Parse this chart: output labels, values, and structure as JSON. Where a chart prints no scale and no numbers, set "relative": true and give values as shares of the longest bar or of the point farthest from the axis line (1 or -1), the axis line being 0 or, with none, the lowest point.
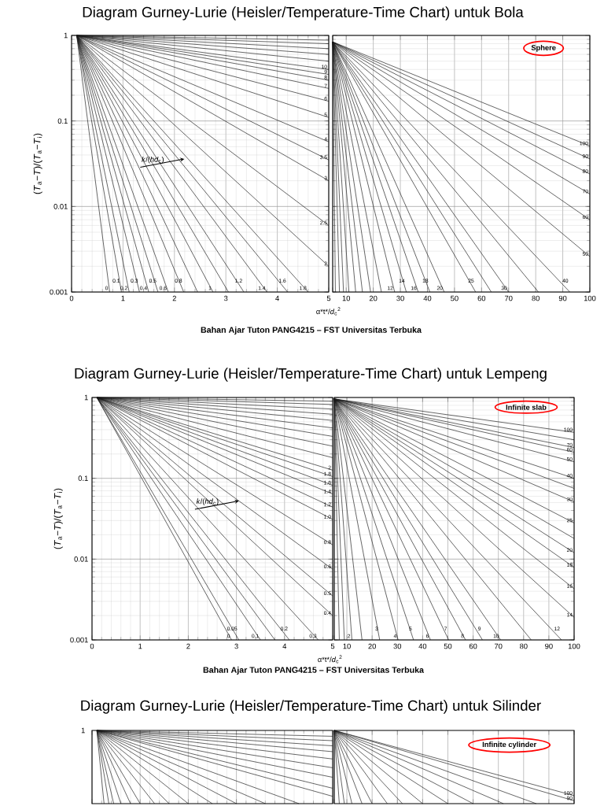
{
  "chart_data": [
    {
      "type": "line",
      "title": "Diagram Gurney-Lurie (Heisler/Temperature-Time Chart) untuk Bola",
      "ylabel": "(*T*$_{a}$−*T*)/(*T*$_{a}$−*T*$_{i}$)",
      "color": "#1a1a1a",
      "log": "y",
      "grid": true,
      "xlim": [
        0,
        5
      ],
      "ylim": [
        0.001,
        1
      ],
      "xticks": [
        0,
        1,
        2,
        3,
        4,
        5
      ],
      "yticks": [
        0.001,
        0.01,
        0.1,
        1
      ],
      "annotations": [
        {
          "text": "*k*/(*hd*$_{c}$)",
          "x": 1.58,
          "y": 0.035
        }
      ],
      "series": [
        {
          "name": "0",
          "x": [
            0.1,
            0.74
          ],
          "values": [
            1,
            0.001
          ]
        },
        {
          "name": "0.1",
          "x": [
            0.1,
            0.97
          ],
          "values": [
            1,
            0.001
          ]
        },
        {
          "name": "0.2",
          "x": [
            0.1,
            1.12
          ],
          "values": [
            1,
            0.001
          ]
        },
        {
          "name": "0.3",
          "x": [
            0.1,
            1.32
          ],
          "values": [
            1,
            0.001
          ]
        },
        {
          "name": "0.4",
          "x": [
            0.1,
            1.5
          ],
          "values": [
            1,
            0.001
          ]
        },
        {
          "name": "0.5",
          "x": [
            0.1,
            1.68
          ],
          "values": [
            1,
            0.001
          ]
        },
        {
          "name": "0.6",
          "x": [
            0.1,
            1.88
          ],
          "values": [
            1,
            0.001
          ]
        },
        {
          "name": "0.8",
          "x": [
            0.1,
            2.18
          ],
          "values": [
            1,
            0.001
          ]
        },
        {
          "x": [
            0.1,
            2.45
          ],
          "values": [
            1,
            0.001
          ]
        },
        {
          "name": "1",
          "x": [
            0.1,
            2.75
          ],
          "values": [
            1,
            0.001
          ]
        },
        {
          "x": [
            0.1,
            3.05
          ],
          "values": [
            1,
            0.001
          ]
        },
        {
          "name": "1.2",
          "x": [
            0.1,
            3.35
          ],
          "values": [
            1,
            0.001
          ]
        },
        {
          "name": "1.4",
          "x": [
            0.1,
            3.8
          ],
          "values": [
            1,
            0.001
          ]
        },
        {
          "name": "1.6",
          "x": [
            0.1,
            4.2
          ],
          "values": [
            1,
            0.001
          ]
        },
        {
          "name": "1.8",
          "x": [
            0.1,
            4.6
          ],
          "values": [
            1,
            0.001
          ]
        },
        {
          "name": "2",
          "x": [
            0.1,
            5
          ],
          "values": [
            1,
            0.002
          ]
        },
        {
          "name": "2.5",
          "x": [
            0.1,
            5
          ],
          "values": [
            1,
            0.006
          ]
        },
        {
          "name": "3",
          "x": [
            0.1,
            5
          ],
          "values": [
            1,
            0.02
          ]
        },
        {
          "name": "3.5",
          "x": [
            0.1,
            5
          ],
          "values": [
            1,
            0.035
          ]
        },
        {
          "name": "4",
          "x": [
            0.1,
            5
          ],
          "values": [
            1,
            0.057
          ]
        },
        {
          "name": "5",
          "x": [
            0.1,
            5
          ],
          "values": [
            1,
            0.11
          ]
        },
        {
          "name": "6",
          "x": [
            0.1,
            5
          ],
          "values": [
            1,
            0.17
          ]
        },
        {
          "name": "7",
          "x": [
            0.1,
            5
          ],
          "values": [
            1,
            0.24
          ]
        },
        {
          "name": "8",
          "x": [
            0.1,
            5
          ],
          "values": [
            1,
            0.3
          ]
        },
        {
          "name": "9",
          "x": [
            0.1,
            5
          ],
          "values": [
            1,
            0.35
          ]
        },
        {
          "name": "10",
          "x": [
            0.1,
            5
          ],
          "values": [
            1,
            0.4
          ]
        },
        {
          "x": [
            0.1,
            5
          ],
          "values": [
            1,
            0.5
          ]
        },
        {
          "x": [
            0.1,
            5
          ],
          "values": [
            1,
            0.6
          ]
        },
        {
          "x": [
            0.1,
            5
          ],
          "values": [
            1,
            0.7
          ]
        },
        {
          "x": [
            0.1,
            5
          ],
          "values": [
            1,
            0.8
          ]
        },
        {
          "x": [
            0.1,
            5
          ],
          "values": [
            1,
            0.88
          ]
        }
      ]
    },
    {
      "type": "line",
      "xlabel": "α*t*/*d*$_{c}$$^{2}$",
      "color": "#1a1a1a",
      "log": "y",
      "grid": true,
      "tick_labels": "x",
      "xlim": [
        5,
        100
      ],
      "ylim": [
        0.001,
        1
      ],
      "xticks": [
        {
          "value": 5,
          "label": null
        },
        10,
        20,
        30,
        40,
        50,
        60,
        70,
        80,
        90,
        100
      ],
      "yticks": [
        0.001,
        0.01,
        0.1,
        1
      ],
      "annotations": [
        "Sphere",
        "Bahan Ajar Tuton PANG4215 – FST Universitas Terbuka"
      ],
      "series": [
        {
          "x": [
            5,
            6
          ],
          "values": [
            0.84,
            0.001
          ]
        },
        {
          "x": [
            5,
            7.5
          ],
          "values": [
            0.84,
            0.001
          ]
        },
        {
          "x": [
            5,
            9
          ],
          "values": [
            0.84,
            0.001
          ]
        },
        {
          "x": [
            5,
            11
          ],
          "values": [
            0.84,
            0.001
          ]
        },
        {
          "x": [
            5,
            13.5
          ],
          "values": [
            0.84,
            0.001
          ]
        },
        {
          "x": [
            5,
            16
          ],
          "values": [
            0.84,
            0.001
          ]
        },
        {
          "x": [
            5,
            19
          ],
          "values": [
            0.84,
            0.001
          ]
        },
        {
          "x": [
            5,
            23
          ],
          "values": [
            0.84,
            0.001
          ]
        },
        {
          "name": "12",
          "x": [
            5,
            27.9
          ],
          "values": [
            0.84,
            0.001
          ]
        },
        {
          "name": "14",
          "x": [
            5,
            32.2
          ],
          "values": [
            0.84,
            0.001
          ]
        },
        {
          "name": "16",
          "x": [
            5,
            36.6
          ],
          "values": [
            0.84,
            0.001
          ]
        },
        {
          "name": "18",
          "x": [
            5,
            40.9
          ],
          "values": [
            0.84,
            0.001
          ]
        },
        {
          "name": "20",
          "x": [
            5,
            46.2
          ],
          "values": [
            0.84,
            0.001
          ]
        },
        {
          "name": "25",
          "x": [
            5,
            57.8
          ],
          "values": [
            0.84,
            0.001
          ]
        },
        {
          "x": [
            5,
            63.6
          ],
          "values": [
            0.84,
            0.001
          ]
        },
        {
          "name": "30",
          "x": [
            5,
            70
          ],
          "values": [
            0.84,
            0.001
          ]
        },
        {
          "x": [
            5,
            81
          ],
          "values": [
            0.84,
            0.001
          ]
        },
        {
          "name": "40",
          "x": [
            5,
            92.6
          ],
          "values": [
            0.84,
            0.001
          ]
        },
        {
          "name": "50",
          "x": [
            5,
            100
          ],
          "values": [
            0.84,
            0.0026
          ]
        },
        {
          "name": "60",
          "x": [
            5,
            100
          ],
          "values": [
            0.84,
            0.007
          ]
        },
        {
          "name": "70",
          "x": [
            5,
            100
          ],
          "values": [
            0.84,
            0.014
          ]
        },
        {
          "name": "80",
          "x": [
            5,
            100
          ],
          "values": [
            0.84,
            0.024
          ]
        },
        {
          "name": "90",
          "x": [
            5,
            100
          ],
          "values": [
            0.84,
            0.036
          ]
        },
        {
          "name": "100",
          "x": [
            5,
            100
          ],
          "values": [
            0.84,
            0.051
          ]
        }
      ]
    },
    {
      "type": "line",
      "title": "Diagram Gurney-Lurie (Heisler/Temperature-Time Chart) untuk Lempeng",
      "ylabel": "(*T*$_{a}$−*T*)/(*T*$_{a}$−*T*$_{i}$)",
      "color": "#1a1a1a",
      "log": "y",
      "grid": true,
      "xlim": [
        0,
        5
      ],
      "ylim": [
        0.001,
        1
      ],
      "xticks": [
        0,
        1,
        2,
        3,
        4,
        5
      ],
      "yticks": [
        0.001,
        0.01,
        0.1,
        1
      ],
      "annotations": [
        {
          "text": "*k*/(*hd*$_{c}$)",
          "x": 2.4,
          "y": 0.051
        }
      ],
      "series": [
        {
          "name": "0",
          "x": [
            0.1,
            2.9
          ],
          "values": [
            1,
            0.001
          ]
        },
        {
          "name": "0.05",
          "x": [
            0.1,
            3.05
          ],
          "values": [
            1,
            0.001
          ]
        },
        {
          "name": "0.1",
          "x": [
            0.1,
            3.5
          ],
          "values": [
            1,
            0.001
          ]
        },
        {
          "x": [
            0.1,
            3.8
          ],
          "values": [
            1,
            0.001
          ]
        },
        {
          "name": "0.2",
          "x": [
            0.1,
            4.1
          ],
          "values": [
            1,
            0.001
          ]
        },
        {
          "name": "0.3",
          "x": [
            0.1,
            4.7
          ],
          "values": [
            1,
            0.001
          ]
        },
        {
          "name": "0.4",
          "x": [
            0.1,
            5
          ],
          "values": [
            1,
            0.002
          ]
        },
        {
          "name": "0.5",
          "x": [
            0.1,
            5
          ],
          "values": [
            1,
            0.0035
          ]
        },
        {
          "name": "0.6",
          "x": [
            0.1,
            5
          ],
          "values": [
            1,
            0.0075
          ]
        },
        {
          "name": "0.8",
          "x": [
            0.1,
            5
          ],
          "values": [
            1,
            0.015
          ]
        },
        {
          "name": "1.0",
          "x": [
            0.1,
            5
          ],
          "values": [
            1,
            0.031
          ]
        },
        {
          "name": "1.2",
          "x": [
            0.1,
            5
          ],
          "values": [
            1,
            0.044
          ]
        },
        {
          "name": "1.4",
          "x": [
            0.1,
            5
          ],
          "values": [
            1,
            0.064
          ]
        },
        {
          "name": "1.6",
          "x": [
            0.1,
            5
          ],
          "values": [
            1,
            0.082
          ]
        },
        {
          "name": "1.8",
          "x": [
            0.1,
            5
          ],
          "values": [
            1,
            0.105
          ]
        },
        {
          "name": "2",
          "x": [
            0.1,
            5
          ],
          "values": [
            1,
            0.126
          ]
        },
        {
          "x": [
            0.1,
            5
          ],
          "values": [
            1,
            0.18
          ]
        },
        {
          "x": [
            0.1,
            5
          ],
          "values": [
            1,
            0.25
          ]
        },
        {
          "x": [
            0.1,
            5
          ],
          "values": [
            1,
            0.33
          ]
        },
        {
          "x": [
            0.1,
            5
          ],
          "values": [
            1,
            0.42
          ]
        },
        {
          "x": [
            0.1,
            5
          ],
          "values": [
            1,
            0.52
          ]
        },
        {
          "x": [
            0.1,
            5
          ],
          "values": [
            1,
            0.62
          ]
        },
        {
          "x": [
            0.1,
            5
          ],
          "values": [
            1,
            0.72
          ]
        },
        {
          "x": [
            0.1,
            5
          ],
          "values": [
            1,
            0.82
          ]
        },
        {
          "x": [
            0.1,
            5
          ],
          "values": [
            1,
            0.9
          ]
        }
      ]
    },
    {
      "type": "line",
      "xlabel": "α*t*/*d*$_{c}$$^{2}$",
      "color": "#1a1a1a",
      "log": "y",
      "grid": true,
      "tick_labels": "x",
      "xlim": [
        5,
        100
      ],
      "ylim": [
        0.001,
        1
      ],
      "xticks": [
        {
          "value": 5,
          "label": null
        },
        10,
        20,
        30,
        40,
        50,
        60,
        70,
        80,
        90,
        100
      ],
      "yticks": [
        0.001,
        0.01,
        0.1,
        1
      ],
      "annotations": [
        "Infinite slab",
        "Bahan Ajar Tuton PANG4215 – FST Universitas Terbuka"
      ],
      "series": [
        {
          "x": [
            5,
            7
          ],
          "values": [
            0.96,
            0.001
          ]
        },
        {
          "x": [
            5,
            9
          ],
          "values": [
            0.96,
            0.001
          ]
        },
        {
          "name": "2",
          "x": [
            5,
            12
          ],
          "values": [
            0.96,
            0.001
          ]
        },
        {
          "x": [
            5,
            16
          ],
          "values": [
            0.96,
            0.001
          ]
        },
        {
          "name": "3",
          "x": [
            5,
            23
          ],
          "values": [
            0.96,
            0.001
          ]
        },
        {
          "name": "4",
          "x": [
            5,
            30.3
          ],
          "values": [
            0.96,
            0.001
          ]
        },
        {
          "name": "5",
          "x": [
            5,
            36.4
          ],
          "values": [
            0.96,
            0.001
          ]
        },
        {
          "name": "6",
          "x": [
            5,
            43.1
          ],
          "values": [
            0.96,
            0.001
          ]
        },
        {
          "name": "7",
          "x": [
            5,
            50.3
          ],
          "values": [
            0.96,
            0.001
          ]
        },
        {
          "name": "8",
          "x": [
            5,
            57
          ],
          "values": [
            0.96,
            0.001
          ]
        },
        {
          "name": "9",
          "x": [
            5,
            63.7
          ],
          "values": [
            0.96,
            0.001
          ]
        },
        {
          "name": "10",
          "x": [
            5,
            70.9
          ],
          "values": [
            0.96,
            0.001
          ]
        },
        {
          "x": [
            5,
            83
          ],
          "values": [
            0.96,
            0.001
          ]
        },
        {
          "name": "12",
          "x": [
            5,
            95
          ],
          "values": [
            0.96,
            0.001
          ]
        },
        {
          "name": "14",
          "x": [
            5,
            100
          ],
          "values": [
            0.96,
            0.0019
          ]
        },
        {
          "name": "16",
          "x": [
            5,
            100
          ],
          "values": [
            0.96,
            0.0043
          ]
        },
        {
          "name": "18",
          "x": [
            5,
            100
          ],
          "values": [
            0.96,
            0.0079
          ]
        },
        {
          "name": "20",
          "x": [
            5,
            100
          ],
          "values": [
            0.96,
            0.012
          ]
        },
        {
          "x": [
            5,
            100
          ],
          "values": [
            0.96,
            0.018
          ]
        },
        {
          "name": "25",
          "x": [
            5,
            100
          ],
          "values": [
            0.96,
            0.028
          ]
        },
        {
          "name": "30",
          "x": [
            5,
            100
          ],
          "values": [
            0.96,
            0.051
          ]
        },
        {
          "x": [
            5,
            100
          ],
          "values": [
            0.96,
            0.075
          ]
        },
        {
          "name": "40",
          "x": [
            5,
            100
          ],
          "values": [
            0.96,
            0.1
          ]
        },
        {
          "name": "50",
          "x": [
            5,
            100
          ],
          "values": [
            0.96,
            0.16
          ]
        },
        {
          "name": "60",
          "x": [
            5,
            100
          ],
          "values": [
            0.96,
            0.21
          ]
        },
        {
          "name": "70",
          "x": [
            5,
            100
          ],
          "values": [
            0.96,
            0.24
          ]
        },
        {
          "x": [
            5,
            100
          ],
          "values": [
            0.96,
            0.3
          ]
        },
        {
          "name": "100",
          "x": [
            5,
            100
          ],
          "values": [
            0.96,
            0.37
          ]
        }
      ]
    },
    {
      "type": "line",
      "title": "Diagram Gurney-Lurie (Heisler/Temperature-Time Chart) untuk Silinder",
      "color": "#1a1a1a",
      "relative": true,
      "grid": "x",
      "tick_labels": false,
      "xlim": [
        0,
        5
      ],
      "xticks": [
        0,
        1,
        2,
        3,
        4,
        5
      ],
      "annotations": [
        "1"
      ],
      "series": [
        {
          "x": [
            0.1,
            0.25
          ],
          "values": [
            1,
            0
          ]
        },
        {
          "x": [
            0.1,
            0.35
          ],
          "values": [
            1,
            0
          ]
        },
        {
          "x": [
            0.1,
            0.45
          ],
          "values": [
            1,
            0
          ]
        },
        {
          "x": [
            0.1,
            0.6
          ],
          "values": [
            1,
            0
          ]
        },
        {
          "x": [
            0.1,
            0.8
          ],
          "values": [
            1,
            0
          ]
        },
        {
          "x": [
            0.1,
            1.0
          ],
          "values": [
            1,
            0
          ]
        },
        {
          "x": [
            0.1,
            1.3
          ],
          "values": [
            1,
            0
          ]
        },
        {
          "x": [
            0.1,
            1.6
          ],
          "values": [
            1,
            0
          ]
        },
        {
          "x": [
            0.1,
            2.0
          ],
          "values": [
            1,
            0
          ]
        },
        {
          "x": [
            0.1,
            2.5
          ],
          "values": [
            1,
            0
          ]
        },
        {
          "x": [
            0.1,
            3.0
          ],
          "values": [
            1,
            0
          ]
        },
        {
          "x": [
            0.1,
            3.6
          ],
          "values": [
            1,
            0
          ]
        },
        {
          "x": [
            0.1,
            4.3
          ],
          "values": [
            1,
            0
          ]
        },
        {
          "x": [
            0.1,
            5
          ],
          "values": [
            1,
            0.1
          ]
        },
        {
          "x": [
            0.1,
            5
          ],
          "values": [
            1,
            0.21
          ]
        },
        {
          "x": [
            0.1,
            5
          ],
          "values": [
            1,
            0.36
          ]
        },
        {
          "x": [
            0.1,
            5
          ],
          "values": [
            1,
            0.49
          ]
        },
        {
          "x": [
            0.1,
            5
          ],
          "values": [
            1,
            0.61
          ]
        },
        {
          "x": [
            0.1,
            5
          ],
          "values": [
            1,
            0.71
          ]
        },
        {
          "x": [
            0.1,
            5
          ],
          "values": [
            1,
            0.79
          ]
        },
        {
          "x": [
            0.1,
            5
          ],
          "values": [
            1,
            0.86
          ]
        },
        {
          "x": [
            0.1,
            5
          ],
          "values": [
            1,
            0.92
          ]
        }
      ]
    },
    {
      "type": "line",
      "color": "#1a1a1a",
      "relative": true,
      "grid": "x",
      "tick_labels": false,
      "xlim": [
        5,
        100
      ],
      "xticks": [
        5,
        10,
        20,
        30,
        40,
        50,
        60,
        70,
        80,
        90,
        100
      ],
      "annotations": [
        "Infinite cylinder"
      ],
      "series": [
        {
          "x": [
            5,
            7
          ],
          "values": [
            1,
            0
          ]
        },
        {
          "x": [
            5,
            9
          ],
          "values": [
            1,
            0
          ]
        },
        {
          "x": [
            5,
            12
          ],
          "values": [
            1,
            0
          ]
        },
        {
          "x": [
            5,
            16
          ],
          "values": [
            1,
            0
          ]
        },
        {
          "x": [
            5,
            20
          ],
          "values": [
            1,
            0
          ]
        },
        {
          "x": [
            5,
            26
          ],
          "values": [
            1,
            0
          ]
        },
        {
          "x": [
            5,
            32
          ],
          "values": [
            1,
            0
          ]
        },
        {
          "x": [
            5,
            40
          ],
          "values": [
            1,
            0
          ]
        },
        {
          "x": [
            5,
            50
          ],
          "values": [
            1,
            0
          ]
        },
        {
          "x": [
            5,
            60
          ],
          "values": [
            1,
            0
          ]
        },
        {
          "x": [
            5,
            72
          ],
          "values": [
            1,
            0
          ]
        },
        {
          "x": [
            5,
            85
          ],
          "values": [
            1,
            0
          ]
        },
        {
          "name": "90",
          "x": [
            5,
            100
          ],
          "values": [
            1,
            0.039
          ]
        },
        {
          "name": "100",
          "x": [
            5,
            100
          ],
          "values": [
            1,
            0.109
          ]
        }
      ]
    }
  ]
}
